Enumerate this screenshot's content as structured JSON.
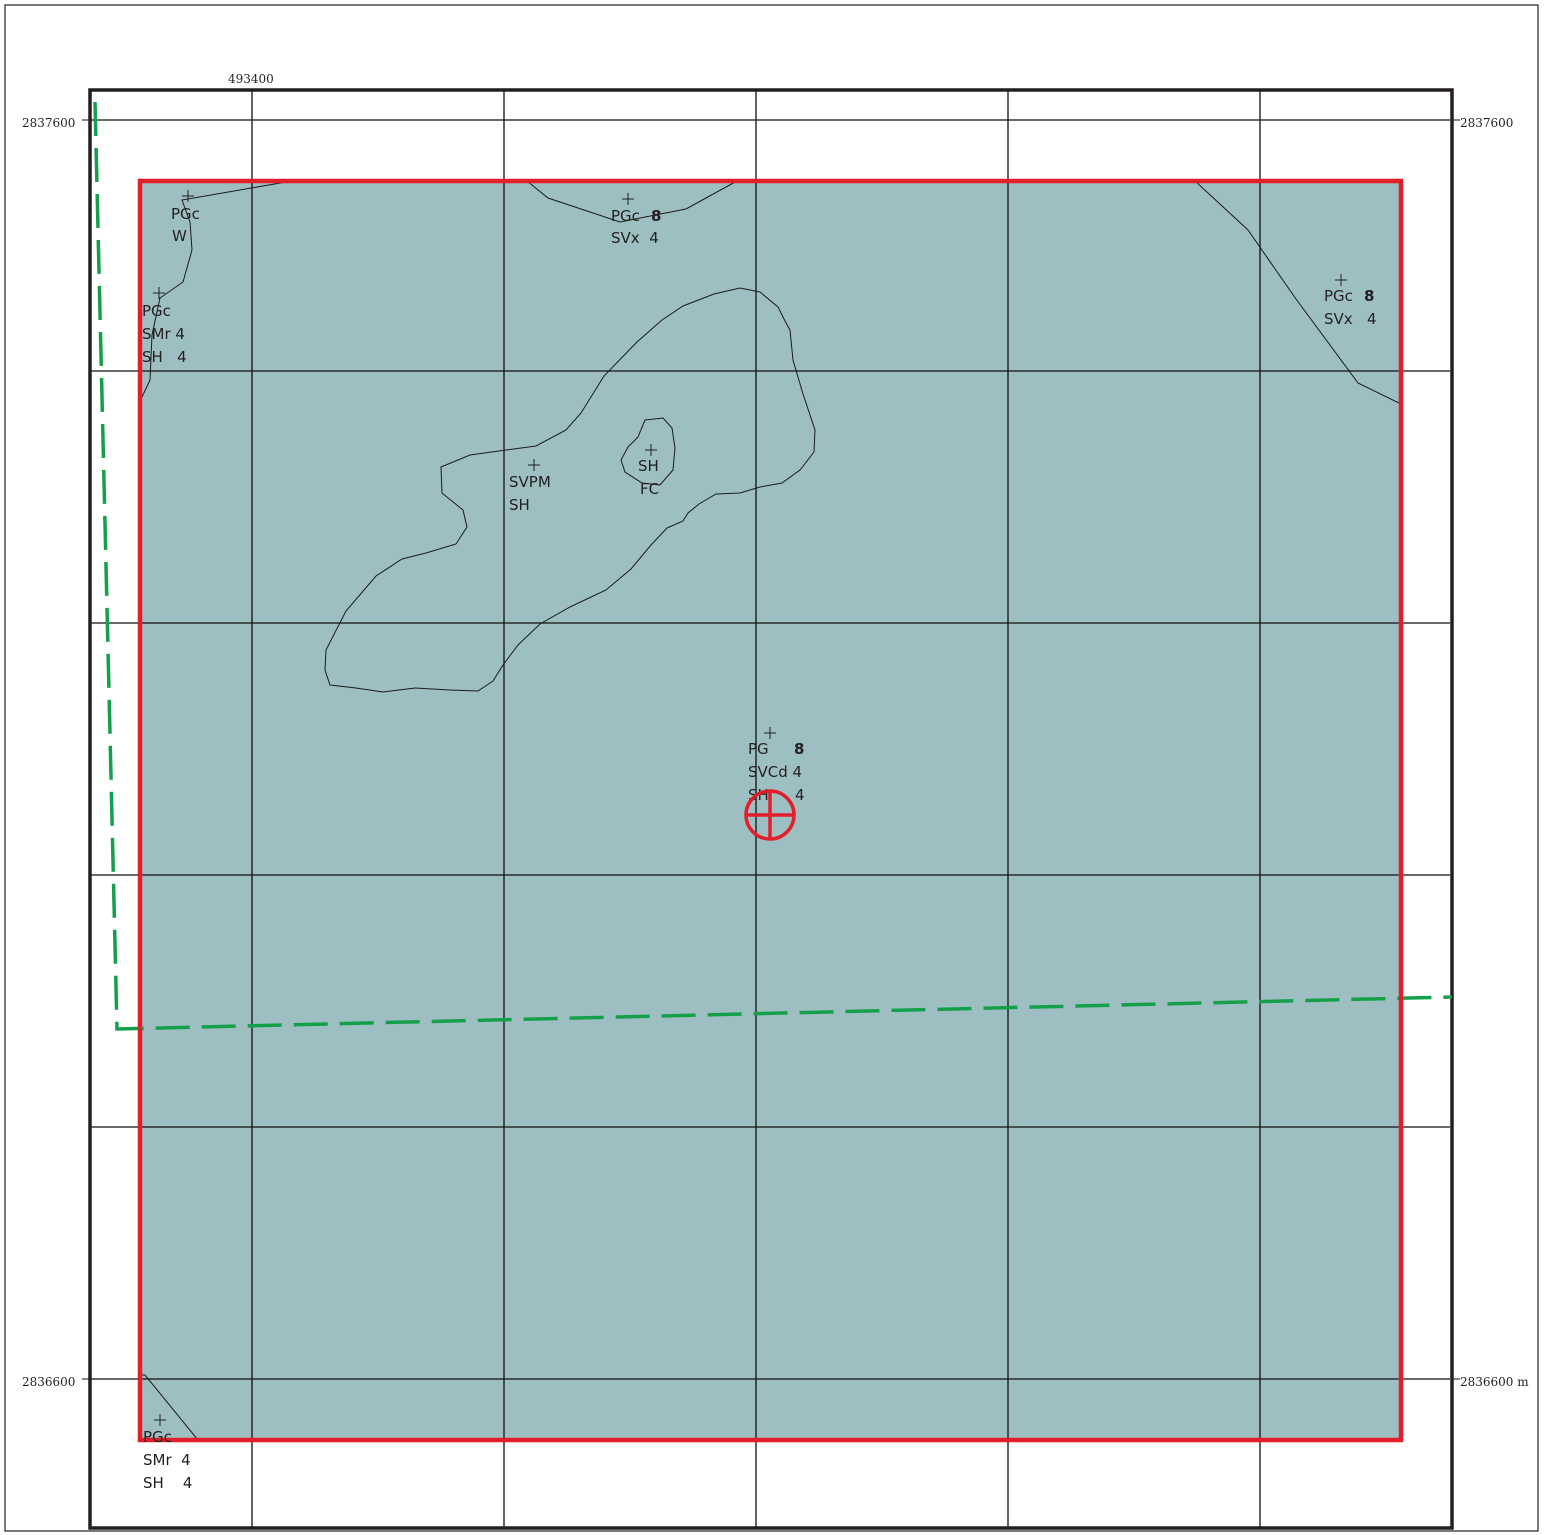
{
  "coordinates": {
    "easting_top": "493400",
    "northing_top_left": "2837600",
    "northing_top_right": "2837600",
    "northing_bottom_left": "2836600",
    "northing_bottom_right": "2836600 m"
  },
  "colors": {
    "base_unit": "#9ebfc1",
    "light_unit": "#cadcdb",
    "tan_unit": "#c8a563",
    "pale_unit": "#dde8bf",
    "study_boundary": "#e21e2b",
    "dashed_line": "#14a04b",
    "grid": "#111111"
  },
  "units": [
    {
      "lines": [
        "PGc",
        "W"
      ]
    },
    {
      "lines": [
        "PGc",
        "SMr 4",
        "SH   4"
      ]
    },
    {
      "line1": "PGc",
      "bold": "8",
      "line2": "SVx  4"
    },
    {
      "line1": "PGc",
      "bold": "8",
      "line2": "SVx   4"
    },
    {
      "lines": [
        "SVPM",
        "SH"
      ]
    },
    {
      "lines": [
        "SH",
        "FC"
      ]
    },
    {
      "line1": "PG",
      "bold": "8",
      "line2": "SVCd 4",
      "line3": "SH",
      "line3b": "4"
    },
    {
      "lines": [
        "PGc",
        "SMr  4",
        "SH    4"
      ]
    }
  ],
  "markers": {
    "target_icon": "crosshair-circle-icon",
    "label_point_icon": "plus-icon"
  }
}
